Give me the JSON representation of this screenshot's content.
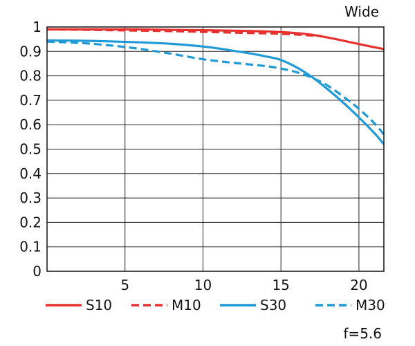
{
  "chart_data": {
    "type": "line",
    "title": "",
    "xlabel": "",
    "ylabel": "",
    "corner_label": "Wide",
    "aperture_note": "f=5.6",
    "xlim": [
      0,
      21.6
    ],
    "ylim": [
      0,
      1
    ],
    "x_ticks": [
      5,
      10,
      15,
      20
    ],
    "y_ticks": [
      0,
      0.1,
      0.2,
      0.3,
      0.4,
      0.5,
      0.6,
      0.7,
      0.8,
      0.9,
      1
    ],
    "y_tick_labels": [
      "0",
      "0.1",
      "0.2",
      "0.3",
      "0.4",
      "0.5",
      "0.6",
      "0.7",
      "0.8",
      "0.9",
      "1"
    ],
    "grid": true,
    "legend_position": "bottom",
    "series": [
      {
        "name": "S10",
        "color": "#e8312f",
        "style": "solid",
        "x": [
          0,
          2,
          4,
          6,
          8,
          10,
          12,
          14,
          15,
          16,
          17,
          18,
          19,
          20,
          21,
          21.6
        ],
        "y": [
          0.99,
          0.99,
          0.99,
          0.99,
          0.988,
          0.987,
          0.985,
          0.982,
          0.979,
          0.975,
          0.968,
          0.957,
          0.944,
          0.93,
          0.917,
          0.91
        ]
      },
      {
        "name": "M10",
        "color": "#e8312f",
        "style": "dashed",
        "x": [
          0,
          2,
          4,
          6,
          8,
          10,
          12,
          14,
          15,
          16,
          17,
          17.6
        ],
        "y": [
          0.99,
          0.989,
          0.987,
          0.985,
          0.983,
          0.98,
          0.977,
          0.974,
          0.972,
          0.969,
          0.965,
          0.963
        ]
      },
      {
        "name": "S30",
        "color": "#1f9ad6",
        "style": "solid",
        "x": [
          0,
          2,
          4,
          6,
          8,
          10,
          11,
          12,
          13,
          14,
          15,
          16,
          17,
          18,
          19,
          20,
          21,
          21.6
        ],
        "y": [
          0.945,
          0.944,
          0.941,
          0.937,
          0.931,
          0.92,
          0.912,
          0.902,
          0.892,
          0.88,
          0.865,
          0.835,
          0.795,
          0.745,
          0.69,
          0.63,
          0.565,
          0.52
        ]
      },
      {
        "name": "M30",
        "color": "#1f9ad6",
        "style": "dashed",
        "x": [
          0,
          2,
          4,
          6,
          8,
          10,
          12,
          14,
          15,
          16,
          17,
          18,
          19,
          20,
          21,
          21.6
        ],
        "y": [
          0.94,
          0.935,
          0.925,
          0.91,
          0.89,
          0.868,
          0.853,
          0.84,
          0.83,
          0.815,
          0.792,
          0.76,
          0.715,
          0.665,
          0.605,
          0.56
        ]
      }
    ]
  }
}
